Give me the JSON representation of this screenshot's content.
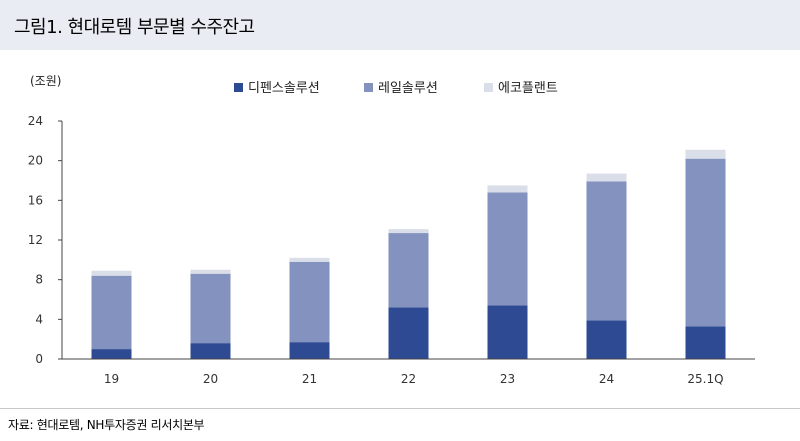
{
  "figure": {
    "title": "그림1. 현대로템 부문별 수주잔고",
    "source": "자료: 현대로템, NH투자증권 리서치본부"
  },
  "chart_data": {
    "type": "bar",
    "stacked": true,
    "unit_label": "(조원)",
    "categories": [
      "19",
      "20",
      "21",
      "22",
      "23",
      "24",
      "25.1Q"
    ],
    "series": [
      {
        "name": "디펜스솔루션",
        "color": "#2e4a93",
        "values": [
          1.0,
          1.6,
          1.7,
          5.2,
          5.4,
          3.9,
          3.3
        ]
      },
      {
        "name": "레일솔루션",
        "color": "#8392be",
        "values": [
          7.4,
          7.0,
          8.1,
          7.5,
          11.4,
          14.0,
          16.9
        ]
      },
      {
        "name": "에코플랜트",
        "color": "#d9dee9",
        "values": [
          0.5,
          0.4,
          0.4,
          0.4,
          0.7,
          0.8,
          0.9
        ]
      }
    ],
    "yticks": [
      0,
      4,
      8,
      12,
      16,
      20,
      24
    ],
    "ylim": [
      0,
      24
    ],
    "legend_position": "top-center",
    "grid": false
  }
}
